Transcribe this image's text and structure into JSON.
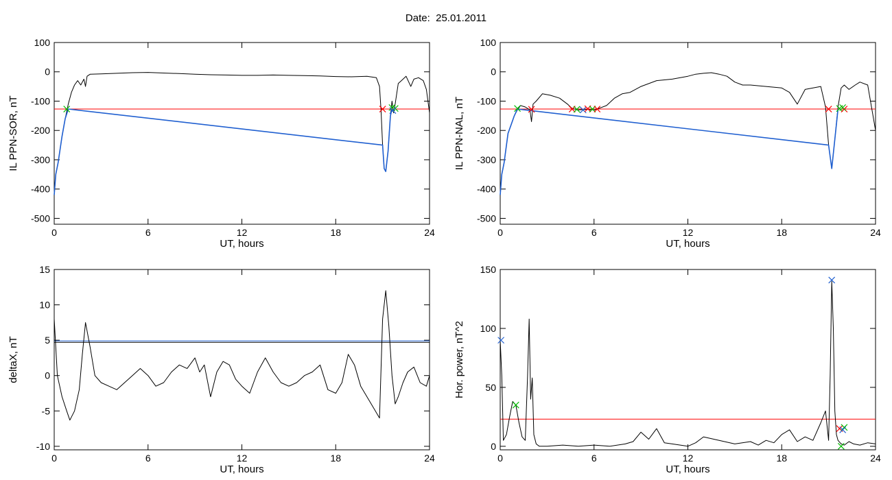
{
  "page": {
    "date_label": "Date:",
    "date_value": "25.01.2011"
  },
  "chart_data": [
    {
      "type": "line",
      "xlabel": "UT, hours",
      "ylabel": "IL PPN-SOR, nT",
      "xlim": [
        0,
        24
      ],
      "ylim": [
        -520,
        100
      ],
      "xticks": [
        0,
        6,
        12,
        18,
        24
      ],
      "yticks": [
        100,
        0,
        -100,
        -200,
        -300,
        -400,
        -500
      ],
      "threshold": {
        "value": -127,
        "color": "#ff0000"
      },
      "series": [
        {
          "color": "#000000",
          "x": [
            0,
            0.1,
            0.25,
            0.5,
            0.7,
            0.9,
            1.1,
            1.3,
            1.5,
            1.7,
            1.9,
            2.0,
            2.1,
            2.3,
            3,
            4,
            5,
            6,
            7,
            8,
            9,
            10,
            11,
            12,
            13,
            14,
            15,
            16,
            17,
            18,
            19,
            20,
            20.6,
            20.8,
            20.9,
            21.0,
            21.1,
            21.2,
            21.35,
            21.5,
            21.6,
            21.7,
            21.8,
            22.0,
            22.2,
            22.5,
            22.8,
            23.0,
            23.3,
            23.6,
            23.8,
            24
          ],
          "y": [
            -420,
            -350,
            -310,
            -220,
            -160,
            -110,
            -70,
            -45,
            -30,
            -45,
            -25,
            -50,
            -15,
            -8,
            -7,
            -5,
            -3,
            -2,
            -4,
            -6,
            -8,
            -10,
            -11,
            -12,
            -12,
            -11,
            -12,
            -13,
            -14,
            -16,
            -17,
            -15,
            -20,
            -50,
            -130,
            -250,
            -330,
            -340,
            -270,
            -150,
            -100,
            -140,
            -110,
            -40,
            -30,
            -15,
            -50,
            -25,
            -20,
            -30,
            -60,
            -140
          ]
        },
        {
          "color": "#1f5fd0",
          "x": [
            0,
            0.1,
            0.25,
            0.5,
            0.7,
            0.9,
            21.0,
            21.1,
            21.2,
            21.35,
            21.5,
            21.6
          ],
          "y": [
            -420,
            -350,
            -310,
            -220,
            -160,
            -127,
            -250,
            -330,
            -340,
            -270,
            -150,
            -127
          ]
        }
      ],
      "markers": [
        {
          "x": 21.0,
          "y": -127,
          "color": "#ff0000"
        },
        {
          "x": 0.8,
          "y": -127,
          "color": "#00bb00"
        },
        {
          "x": 21.6,
          "y": -122,
          "color": "#00bb00"
        },
        {
          "x": 21.8,
          "y": -125,
          "color": "#00bb00"
        },
        {
          "x": 21.65,
          "y": -132,
          "color": "#1f5fd0"
        }
      ]
    },
    {
      "type": "line",
      "xlabel": "UT, hours",
      "ylabel": "IL PPN-NAL, nT",
      "xlim": [
        0,
        24
      ],
      "ylim": [
        -520,
        100
      ],
      "xticks": [
        0,
        6,
        12,
        18,
        24
      ],
      "yticks": [
        100,
        0,
        -100,
        -200,
        -300,
        -400,
        -500
      ],
      "threshold": {
        "value": -127,
        "color": "#ff0000"
      },
      "series": [
        {
          "color": "#000000",
          "x": [
            0,
            0.1,
            0.25,
            0.5,
            0.7,
            0.9,
            1.1,
            1.3,
            1.6,
            1.9,
            2.0,
            2.1,
            2.3,
            2.7,
            3.2,
            3.8,
            4.3,
            4.6,
            5,
            5.5,
            6,
            6.3,
            6.8,
            7.3,
            7.8,
            8.3,
            9,
            10,
            11,
            12,
            12.5,
            13,
            13.5,
            14,
            14.5,
            15,
            15.5,
            16,
            17,
            18,
            18.5,
            19,
            19.5,
            20,
            20.5,
            20.8,
            21.0,
            21.2,
            21.4,
            21.6,
            21.8,
            22.0,
            22.3,
            22.7,
            23.0,
            23.5,
            24
          ],
          "y": [
            -420,
            -350,
            -310,
            -210,
            -180,
            -150,
            -130,
            -115,
            -120,
            -130,
            -170,
            -110,
            -100,
            -75,
            -80,
            -90,
            -110,
            -125,
            -130,
            -128,
            -130,
            -125,
            -115,
            -90,
            -75,
            -70,
            -50,
            -30,
            -25,
            -15,
            -8,
            -5,
            -3,
            -8,
            -15,
            -35,
            -45,
            -45,
            -50,
            -55,
            -70,
            -110,
            -60,
            -55,
            -50,
            -120,
            -250,
            -330,
            -230,
            -120,
            -55,
            -45,
            -60,
            -45,
            -35,
            -45,
            -200
          ]
        },
        {
          "color": "#1f5fd0",
          "x": [
            0,
            0.1,
            0.25,
            0.5,
            0.7,
            0.9,
            1.1,
            21.0,
            21.2,
            21.4,
            21.6
          ],
          "y": [
            -420,
            -350,
            -310,
            -210,
            -180,
            -150,
            -127,
            -250,
            -330,
            -230,
            -127
          ]
        }
      ],
      "markers": [
        {
          "x": 1.1,
          "y": -125,
          "color": "#00bb00"
        },
        {
          "x": 2.0,
          "y": -128,
          "color": "#ff0000"
        },
        {
          "x": 4.6,
          "y": -127,
          "color": "#ff0000"
        },
        {
          "x": 4.9,
          "y": -128,
          "color": "#00bb00"
        },
        {
          "x": 5.3,
          "y": -130,
          "color": "#1f5fd0"
        },
        {
          "x": 5.6,
          "y": -126,
          "color": "#ff0000"
        },
        {
          "x": 5.9,
          "y": -127,
          "color": "#00bb00"
        },
        {
          "x": 6.2,
          "y": -127,
          "color": "#ff0000"
        },
        {
          "x": 21.0,
          "y": -127,
          "color": "#ff0000"
        },
        {
          "x": 21.7,
          "y": -125,
          "color": "#00bb00"
        },
        {
          "x": 22.0,
          "y": -127,
          "color": "#ff0000"
        },
        {
          "x": 21.9,
          "y": -122,
          "color": "#00bb00"
        }
      ]
    },
    {
      "type": "line",
      "xlabel": "UT, hours",
      "ylabel": "deltaX, nT",
      "xlim": [
        0,
        24
      ],
      "ylim": [
        -10.5,
        15
      ],
      "xticks": [
        0,
        6,
        12,
        18,
        24
      ],
      "yticks": [
        15,
        10,
        5,
        0,
        -5,
        -10
      ],
      "thresholds": [
        {
          "value": 4.9,
          "color": "#1f5fd0"
        },
        {
          "value": 4.7,
          "color": "#000000"
        }
      ],
      "series": [
        {
          "color": "#000000",
          "x": [
            0,
            0.2,
            0.5,
            0.8,
            1.0,
            1.3,
            1.6,
            1.8,
            2.0,
            2.3,
            2.6,
            3.0,
            3.5,
            4.0,
            4.5,
            5.0,
            5.5,
            6.0,
            6.5,
            7.0,
            7.5,
            8.0,
            8.5,
            9.0,
            9.3,
            9.6,
            10.0,
            10.4,
            10.8,
            11.2,
            11.6,
            12.0,
            12.5,
            13.0,
            13.5,
            14.0,
            14.5,
            15.0,
            15.5,
            16.0,
            16.5,
            17.0,
            17.5,
            18.0,
            18.4,
            18.8,
            19.2,
            19.6,
            20.0,
            20.4,
            20.8,
            21.0,
            21.2,
            21.4,
            21.6,
            21.8,
            22.0,
            22.3,
            22.6,
            23.0,
            23.4,
            23.8,
            24
          ],
          "y": [
            8,
            0,
            -3,
            -5,
            -6.3,
            -5,
            -2,
            3,
            7.5,
            4,
            0,
            -1,
            -1.5,
            -2,
            -1,
            0,
            1,
            0,
            -1.5,
            -1,
            0.5,
            1.5,
            1,
            2.5,
            0.5,
            1.5,
            -3,
            0.5,
            2,
            1.5,
            -0.5,
            -1.5,
            -2.5,
            0.5,
            2.5,
            0.5,
            -1,
            -1.5,
            -1,
            0,
            0.5,
            1.5,
            -2,
            -2.5,
            -1,
            3,
            1.5,
            -1.5,
            -3,
            -4.5,
            -6,
            8,
            12,
            7,
            0,
            -4,
            -3,
            -1,
            0.5,
            1.2,
            -1,
            -1.5,
            0
          ]
        }
      ],
      "markers": []
    },
    {
      "type": "line",
      "xlabel": "UT, hours",
      "ylabel": "Hor. power, nT^2",
      "xlim": [
        0,
        24
      ],
      "ylim": [
        -3,
        150
      ],
      "xticks": [
        0,
        6,
        12,
        18,
        24
      ],
      "yticks": [
        150,
        100,
        50,
        0
      ],
      "threshold": {
        "value": 23,
        "color": "#ff0000"
      },
      "series": [
        {
          "color": "#000000",
          "x": [
            0,
            0.1,
            0.2,
            0.4,
            0.6,
            0.8,
            1.0,
            1.2,
            1.4,
            1.6,
            1.75,
            1.85,
            1.95,
            2.05,
            2.15,
            2.3,
            2.5,
            3.0,
            4.0,
            5.0,
            6.0,
            7.0,
            8.0,
            8.5,
            9.0,
            9.5,
            10.0,
            10.5,
            11.0,
            12.0,
            12.5,
            13.0,
            14.0,
            15.0,
            16.0,
            16.5,
            17.0,
            17.5,
            18.0,
            18.5,
            19.0,
            19.5,
            20.0,
            20.5,
            20.8,
            21.0,
            21.1,
            21.2,
            21.3,
            21.4,
            21.5,
            21.6,
            21.8,
            22.0,
            22.3,
            22.6,
            23.0,
            23.5,
            24
          ],
          "y": [
            90,
            60,
            5,
            10,
            25,
            38,
            35,
            20,
            8,
            5,
            60,
            108,
            40,
            58,
            10,
            2,
            0,
            0,
            1,
            0,
            1,
            0,
            2,
            4,
            12,
            6,
            15,
            3,
            2,
            0,
            3,
            8,
            5,
            2,
            4,
            1,
            5,
            3,
            10,
            14,
            4,
            8,
            5,
            20,
            30,
            5,
            60,
            140,
            100,
            30,
            10,
            5,
            2,
            1,
            4,
            2,
            1,
            3,
            2
          ]
        }
      ],
      "markers": [
        {
          "x": 0.05,
          "y": 90,
          "color": "#1f5fd0"
        },
        {
          "x": 21.2,
          "y": 141,
          "color": "#1f5fd0"
        },
        {
          "x": 1.0,
          "y": 35,
          "color": "#00bb00"
        },
        {
          "x": 21.7,
          "y": 15,
          "color": "#ff0000"
        },
        {
          "x": 22.0,
          "y": 16,
          "color": "#00bb00"
        },
        {
          "x": 21.9,
          "y": 14,
          "color": "#1f5fd0"
        },
        {
          "x": 21.8,
          "y": 0,
          "color": "#00bb00"
        }
      ]
    }
  ]
}
